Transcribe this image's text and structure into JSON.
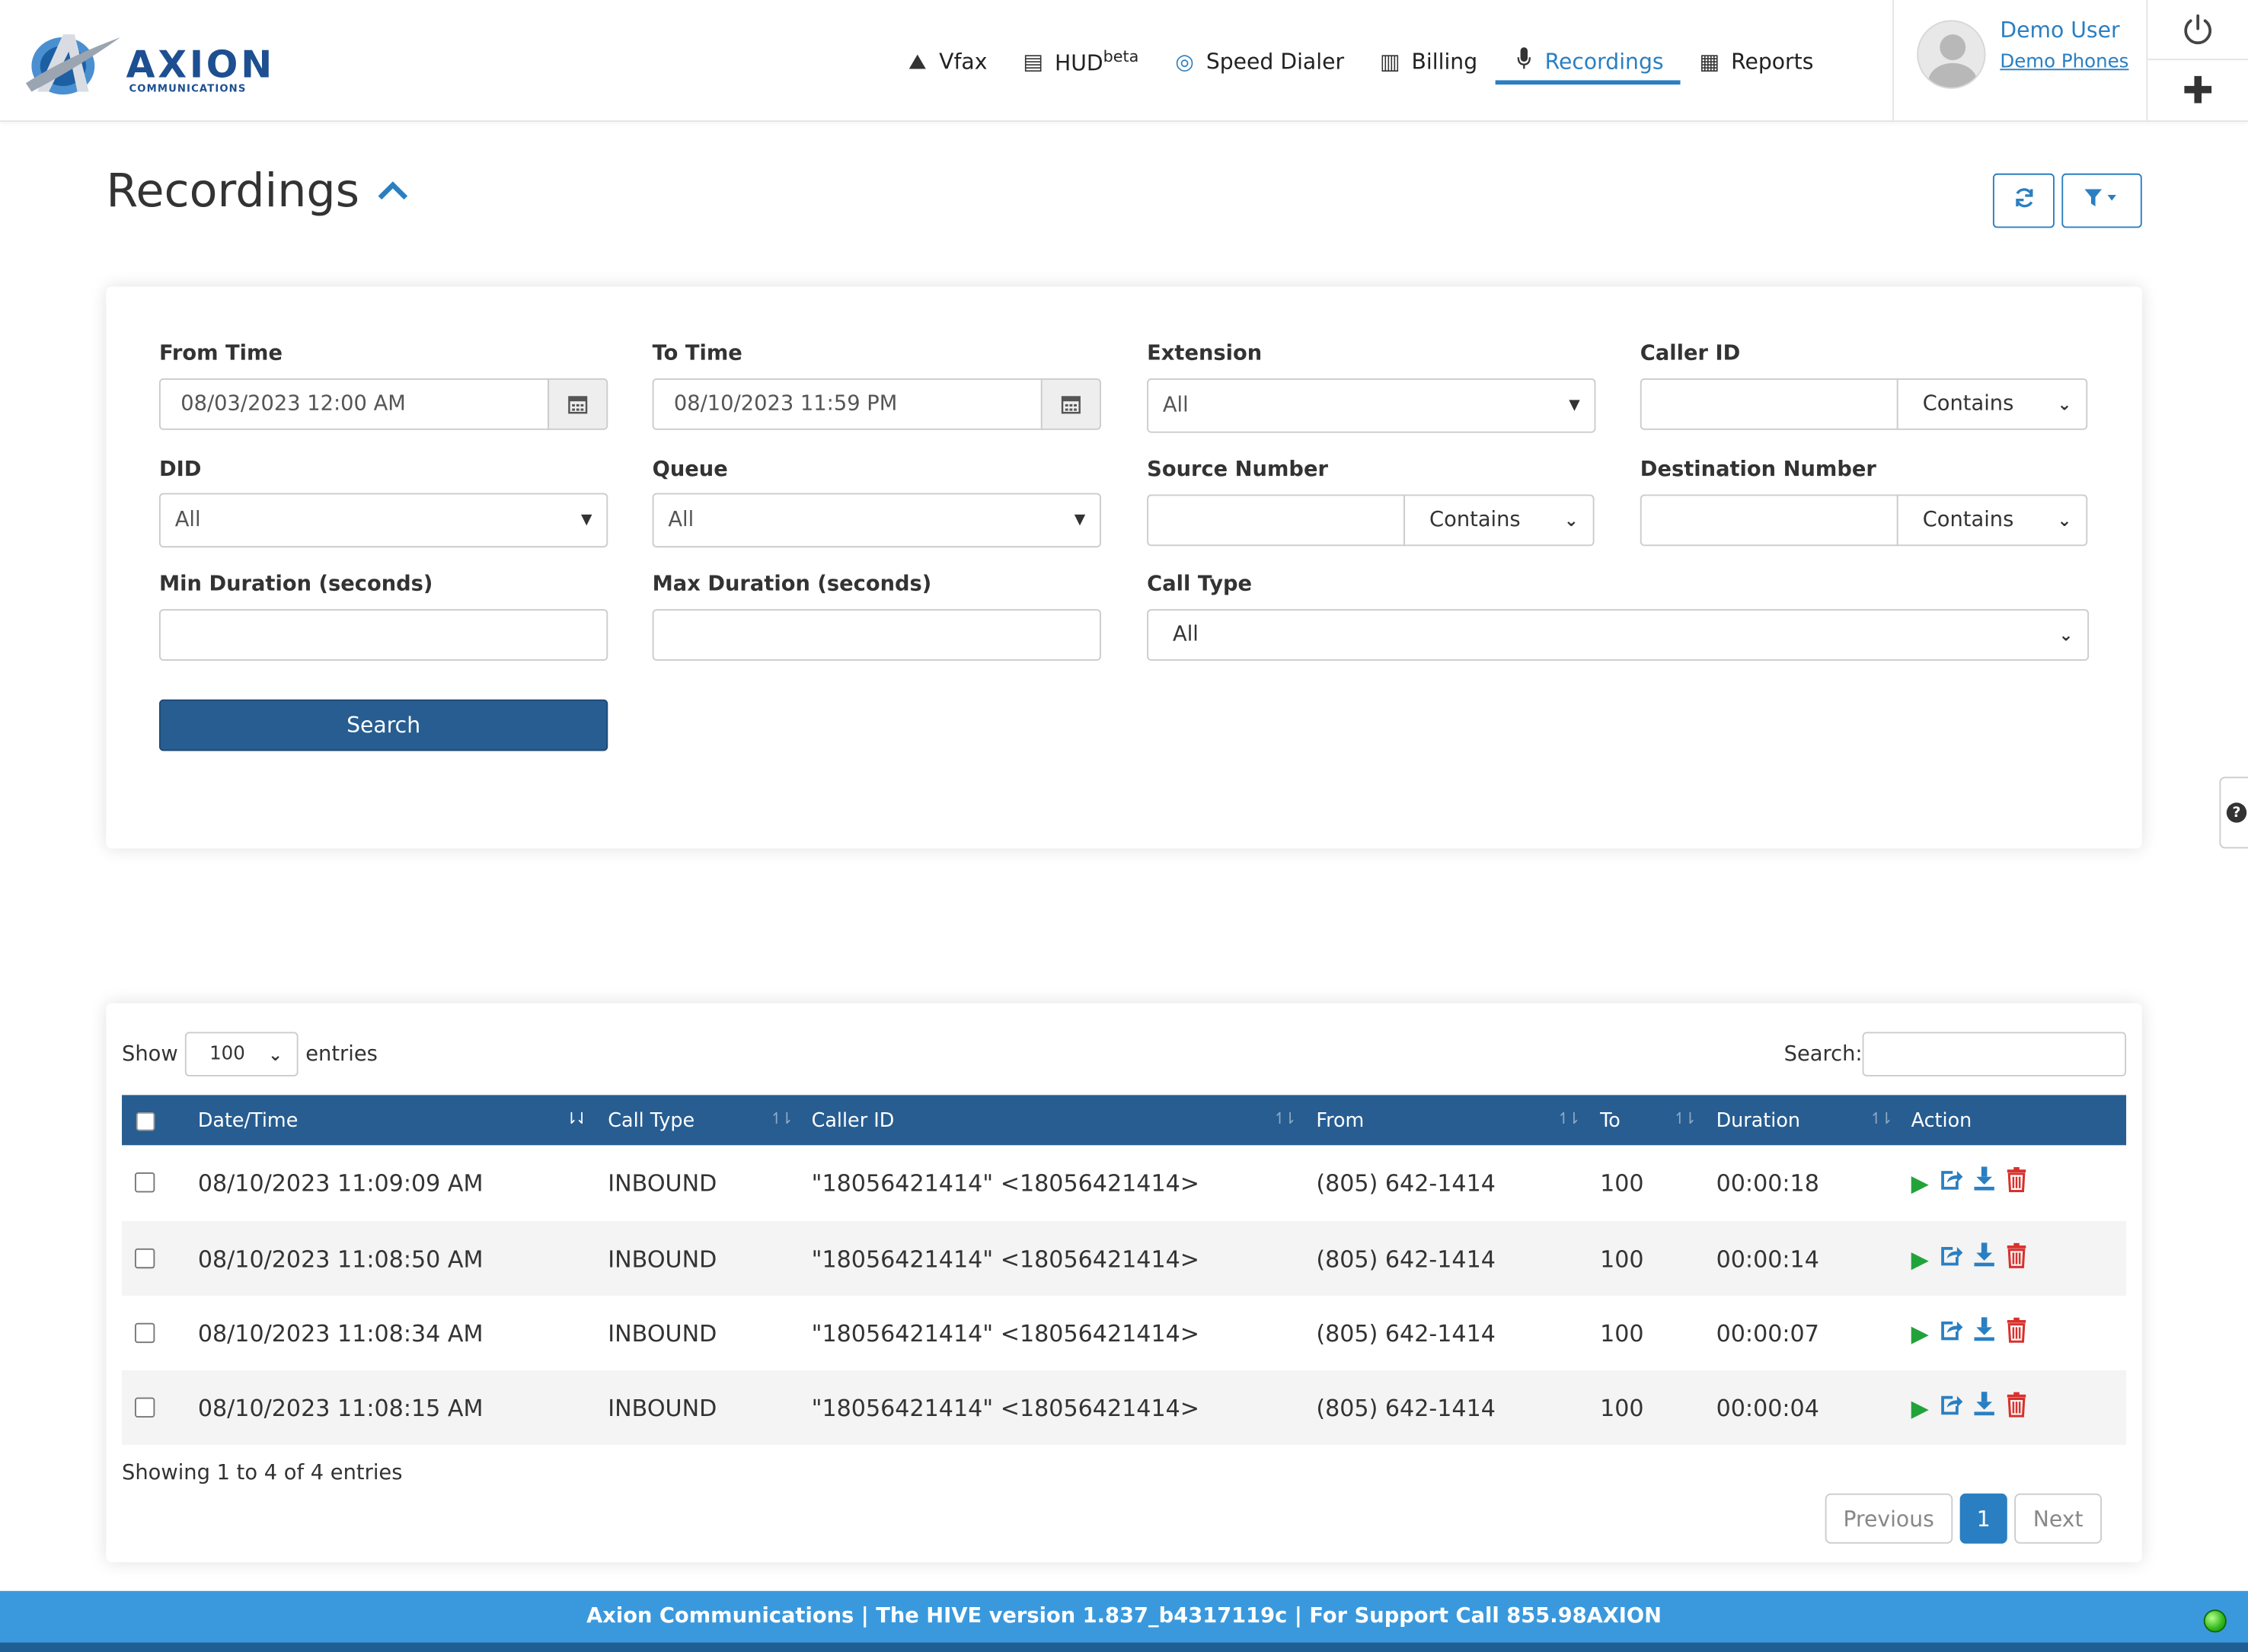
{
  "brand": {
    "name": "AXION",
    "sub": "COMMUNICATIONS"
  },
  "nav": {
    "items": [
      {
        "label": "Vfax",
        "icon": "vfax-icon",
        "glyph": "⛰"
      },
      {
        "label": "HUD",
        "sup": "beta",
        "icon": "hud-icon",
        "glyph": "▤"
      },
      {
        "label": "Speed Dialer",
        "icon": "target-icon",
        "glyph": "◎"
      },
      {
        "label": "Billing",
        "icon": "billing-icon",
        "glyph": "▥"
      },
      {
        "label": "Recordings",
        "icon": "microphone-icon",
        "glyph": "🎙",
        "active": true
      },
      {
        "label": "Reports",
        "icon": "reports-icon",
        "glyph": "▦"
      }
    ]
  },
  "user": {
    "name": "Demo User",
    "org": "Demo Phones"
  },
  "page": {
    "title": "Recordings"
  },
  "filters": {
    "from_time": {
      "label": "From Time",
      "value": "08/03/2023 12:00 AM"
    },
    "to_time": {
      "label": "To Time",
      "value": "08/10/2023 11:59 PM"
    },
    "extension": {
      "label": "Extension",
      "value": "All"
    },
    "caller_id": {
      "label": "Caller ID",
      "value": "",
      "match": "Contains"
    },
    "did": {
      "label": "DID",
      "value": "All"
    },
    "queue": {
      "label": "Queue",
      "value": "All"
    },
    "source_number": {
      "label": "Source Number",
      "value": "",
      "match": "Contains"
    },
    "destination_number": {
      "label": "Destination Number",
      "value": "",
      "match": "Contains"
    },
    "min_duration": {
      "label": "Min Duration (seconds)",
      "value": ""
    },
    "max_duration": {
      "label": "Max Duration (seconds)",
      "value": ""
    },
    "call_type": {
      "label": "Call Type",
      "value": "All"
    },
    "search_label": "Search"
  },
  "table": {
    "show_label": "Show",
    "page_length": "100",
    "entries_label": "entries",
    "search_label": "Search:",
    "columns": [
      "Date/Time",
      "Call Type",
      "Caller ID",
      "From",
      "To",
      "Duration",
      "Action"
    ],
    "rows": [
      {
        "datetime": "08/10/2023 11:09:09 AM",
        "call_type": "INBOUND",
        "caller_id": "\"18056421414\" <18056421414>",
        "from": "(805) 642-1414",
        "to": "100",
        "duration": "00:00:18"
      },
      {
        "datetime": "08/10/2023 11:08:50 AM",
        "call_type": "INBOUND",
        "caller_id": "\"18056421414\" <18056421414>",
        "from": "(805) 642-1414",
        "to": "100",
        "duration": "00:00:14"
      },
      {
        "datetime": "08/10/2023 11:08:34 AM",
        "call_type": "INBOUND",
        "caller_id": "\"18056421414\" <18056421414>",
        "from": "(805) 642-1414",
        "to": "100",
        "duration": "00:00:07"
      },
      {
        "datetime": "08/10/2023 11:08:15 AM",
        "call_type": "INBOUND",
        "caller_id": "\"18056421414\" <18056421414>",
        "from": "(805) 642-1414",
        "to": "100",
        "duration": "00:00:04"
      }
    ],
    "info": "Showing 1 to 4 of 4 entries",
    "pager": {
      "previous": "Previous",
      "current": "1",
      "next": "Next"
    }
  },
  "footer": {
    "text": "Axion Communications | The HIVE version 1.837_b4317119c | For Support Call 855.98AXION"
  },
  "colors": {
    "accent": "#2a7fc2",
    "header": "#275d91",
    "footer": "#3a99dd",
    "play": "#22a33a",
    "delete": "#d9302c"
  }
}
